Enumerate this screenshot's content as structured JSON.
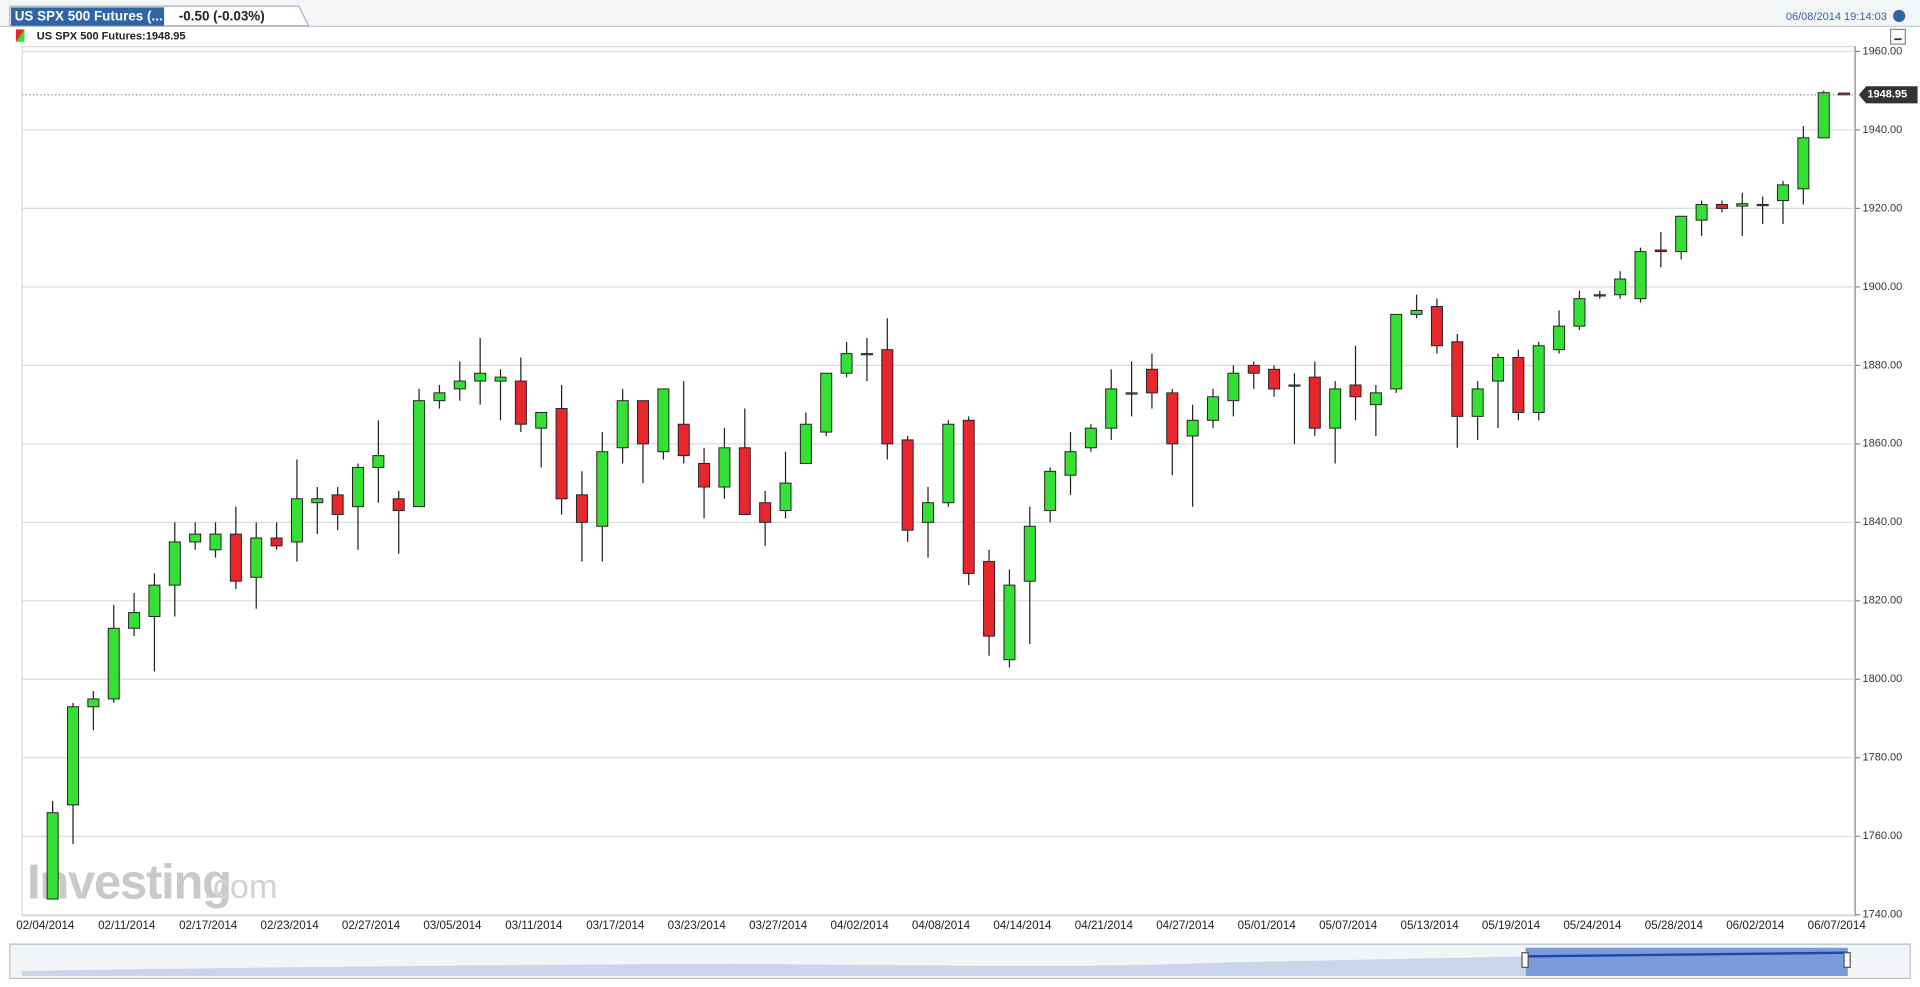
{
  "header": {
    "tab_title": "US SPX 500 Futures (...",
    "change": "-0.50 (-0.03%)",
    "timestamp": "06/08/2014 19:14:03"
  },
  "chart_data": {
    "type": "candlestick",
    "legend": "US SPX 500 Futures:1948.95",
    "last_price": 1948.95,
    "watermark": {
      "main": "Investing",
      "suffix": ".com"
    },
    "up_color": "#33e033",
    "down_color": "#e8272d",
    "categories": [
      "02/04/2014",
      null,
      null,
      null,
      "02/11/2014",
      null,
      null,
      null,
      "02/17/2014",
      null,
      null,
      null,
      "02/23/2014",
      null,
      null,
      null,
      "02/27/2014",
      null,
      null,
      null,
      "03/05/2014",
      null,
      null,
      null,
      "03/11/2014",
      null,
      null,
      null,
      "03/17/2014",
      null,
      null,
      null,
      "03/23/2014",
      null,
      null,
      null,
      "03/27/2014",
      null,
      null,
      null,
      "04/02/2014",
      null,
      null,
      null,
      "04/08/2014",
      null,
      null,
      null,
      "04/14/2014",
      null,
      null,
      null,
      "04/21/2014",
      null,
      null,
      null,
      "04/27/2014",
      null,
      null,
      null,
      "05/01/2014",
      null,
      null,
      null,
      "05/07/2014",
      null,
      null,
      null,
      "05/13/2014",
      null,
      null,
      null,
      "05/19/2014",
      null,
      null,
      null,
      "05/24/2014",
      null,
      null,
      null,
      "05/28/2014",
      null,
      null,
      null,
      "06/02/2014",
      null,
      null,
      null,
      "06/07/2014"
    ],
    "open": [
      1744,
      1768,
      1793,
      1795,
      1813,
      1816,
      1824,
      1835,
      1833,
      1837,
      1826,
      1836,
      1835,
      1845,
      1847,
      1844,
      1854,
      1846,
      1844,
      1871,
      1874,
      1876,
      1876,
      1876,
      1864,
      1869,
      1847,
      1839,
      1859,
      1871,
      1858,
      1865,
      1855,
      1849,
      1859,
      1845,
      1843,
      1855,
      1863,
      1878,
      1883,
      1884,
      1861,
      1840,
      1845,
      1866,
      1830,
      1805,
      1825,
      1843,
      1852,
      1859,
      1864,
      1873,
      1879,
      1873,
      1862,
      1866,
      1871,
      1880,
      1879,
      1875,
      1877,
      1864,
      1875,
      1870,
      1874,
      1893,
      1895,
      1886,
      1867,
      1876,
      1882,
      1868,
      1884,
      1890,
      1898,
      1898,
      1897,
      1909.4,
      1909,
      1917,
      1921,
      1920.6,
      1921,
      1922,
      1925,
      1938,
      1949.4
    ],
    "high": [
      1769,
      1794,
      1797,
      1819,
      1822,
      1827,
      1840,
      1840,
      1840,
      1844,
      1840,
      1840,
      1856,
      1849,
      1849,
      1855,
      1866,
      1848,
      1874,
      1875,
      1881,
      1887,
      1879,
      1882,
      1868,
      1875,
      1853,
      1863,
      1874,
      1871,
      1874,
      1876,
      1859,
      1864,
      1869,
      1848,
      1858,
      1868,
      1878,
      1886,
      1887,
      1892,
      1862,
      1849,
      1866,
      1867,
      1833,
      1828,
      1844,
      1854,
      1863,
      1865,
      1879,
      1881,
      1883,
      1874,
      1870,
      1874,
      1880,
      1881,
      1880,
      1878,
      1881,
      1876,
      1885,
      1875,
      1893,
      1898,
      1897,
      1888,
      1876,
      1883,
      1884,
      1886,
      1894,
      1899,
      1899,
      1904,
      1910,
      1914,
      1918,
      1922,
      1922,
      1924,
      1923,
      1927,
      1941,
      1950,
      1949.5
    ],
    "low": [
      1744,
      1758,
      1787,
      1794,
      1811,
      1802,
      1816,
      1833,
      1831,
      1823,
      1818,
      1833,
      1830,
      1837,
      1838,
      1833,
      1845,
      1832,
      1844,
      1869,
      1871,
      1870,
      1866,
      1863,
      1854,
      1842,
      1830,
      1830,
      1855,
      1850,
      1856,
      1855,
      1841,
      1846,
      1842,
      1834,
      1841,
      1855,
      1862,
      1877,
      1876,
      1856,
      1835,
      1831,
      1844,
      1824,
      1806,
      1803,
      1809,
      1840,
      1847,
      1858,
      1861,
      1867,
      1869,
      1852,
      1844,
      1864,
      1867,
      1874,
      1872,
      1860,
      1862,
      1855,
      1866,
      1862,
      1873,
      1892,
      1883,
      1859,
      1861,
      1864,
      1866,
      1866,
      1883,
      1889,
      1897,
      1897,
      1896,
      1905,
      1907,
      1913,
      1919,
      1913,
      1916,
      1916,
      1921,
      1938,
      1948.9
    ],
    "close": [
      1766,
      1793,
      1795,
      1813,
      1817,
      1824,
      1835,
      1837,
      1837,
      1825,
      1836,
      1834,
      1846,
      1846,
      1842,
      1854,
      1857,
      1843,
      1871,
      1873,
      1876,
      1878,
      1877,
      1865,
      1868,
      1846,
      1840,
      1858,
      1871,
      1860,
      1874,
      1857,
      1849,
      1859,
      1842,
      1840,
      1850,
      1865,
      1878,
      1883,
      1883,
      1860,
      1838,
      1845,
      1865,
      1827,
      1811,
      1824,
      1839,
      1853,
      1858,
      1864,
      1874,
      1873,
      1873,
      1860,
      1866,
      1872,
      1878,
      1878,
      1874,
      1875,
      1864,
      1874,
      1872,
      1873,
      1893,
      1894,
      1885,
      1867,
      1874,
      1882,
      1868,
      1885,
      1890,
      1897,
      1898,
      1902,
      1909,
      1909,
      1918,
      1921,
      1920,
      1921.2,
      1921,
      1926,
      1938,
      1949.5,
      1948.95
    ],
    "ylim": [
      1740,
      1960
    ],
    "yticks": [
      {
        "value": 1740,
        "label": "1740.00"
      },
      {
        "value": 1760,
        "label": "1760.00"
      },
      {
        "value": 1780,
        "label": "1780.00"
      },
      {
        "value": 1800,
        "label": "1800.00"
      },
      {
        "value": 1820,
        "label": "1820.00"
      },
      {
        "value": 1840,
        "label": "1840.00"
      },
      {
        "value": 1860,
        "label": "1860.00"
      },
      {
        "value": 1880,
        "label": "1880.00"
      },
      {
        "value": 1900,
        "label": "1900.00"
      },
      {
        "value": 1920,
        "label": "1920.00"
      },
      {
        "value": 1940,
        "label": "1940.00"
      },
      {
        "value": 1960,
        "label": "1960.00"
      }
    ],
    "grid": true
  }
}
